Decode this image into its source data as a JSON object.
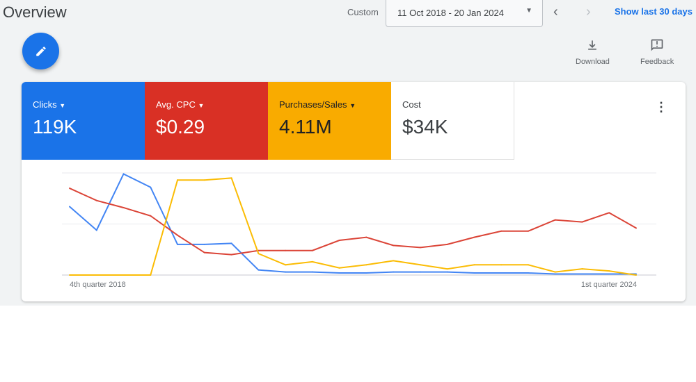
{
  "header": {
    "title": "Overview",
    "range_label": "Custom",
    "date_range": "11 Oct 2018 - 20 Jan 2024",
    "show_last": "Show last 30 days"
  },
  "toolbar": {
    "download": "Download",
    "feedback": "Feedback"
  },
  "metrics": [
    {
      "label": "Clicks",
      "value": "119K",
      "color": "#1a73e8",
      "dropdown": true
    },
    {
      "label": "Avg. CPC",
      "value": "$0.29",
      "color": "#d93025",
      "dropdown": true
    },
    {
      "label": "Purchases/Sales",
      "value": "4.11M",
      "color": "#f9ab00",
      "dropdown": true
    },
    {
      "label": "Cost",
      "value": "$34K",
      "color": "#ffffff",
      "dropdown": false
    }
  ],
  "chart_data": {
    "type": "line",
    "x_start_label": "4th quarter 2018",
    "x_end_label": "1st quarter 2024",
    "ylim": [
      0,
      100
    ],
    "grid": true,
    "series": [
      {
        "color": "#4285f4",
        "values": [
          67,
          44,
          99,
          86,
          30,
          30,
          31,
          5,
          3,
          3,
          2,
          2,
          3,
          3,
          3,
          2,
          2,
          2,
          1,
          1,
          1,
          1
        ]
      },
      {
        "color": "#db4437",
        "values": [
          85,
          73,
          66,
          58,
          39,
          22,
          20,
          24,
          24,
          24,
          34,
          37,
          29,
          27,
          30,
          37,
          43,
          43,
          54,
          52,
          61,
          46
        ]
      },
      {
        "color": "#fbbc04",
        "values": [
          0,
          0,
          0,
          0,
          93,
          93,
          95,
          21,
          10,
          13,
          7,
          10,
          14,
          10,
          6,
          10,
          10,
          10,
          3,
          6,
          4,
          0
        ]
      }
    ]
  }
}
